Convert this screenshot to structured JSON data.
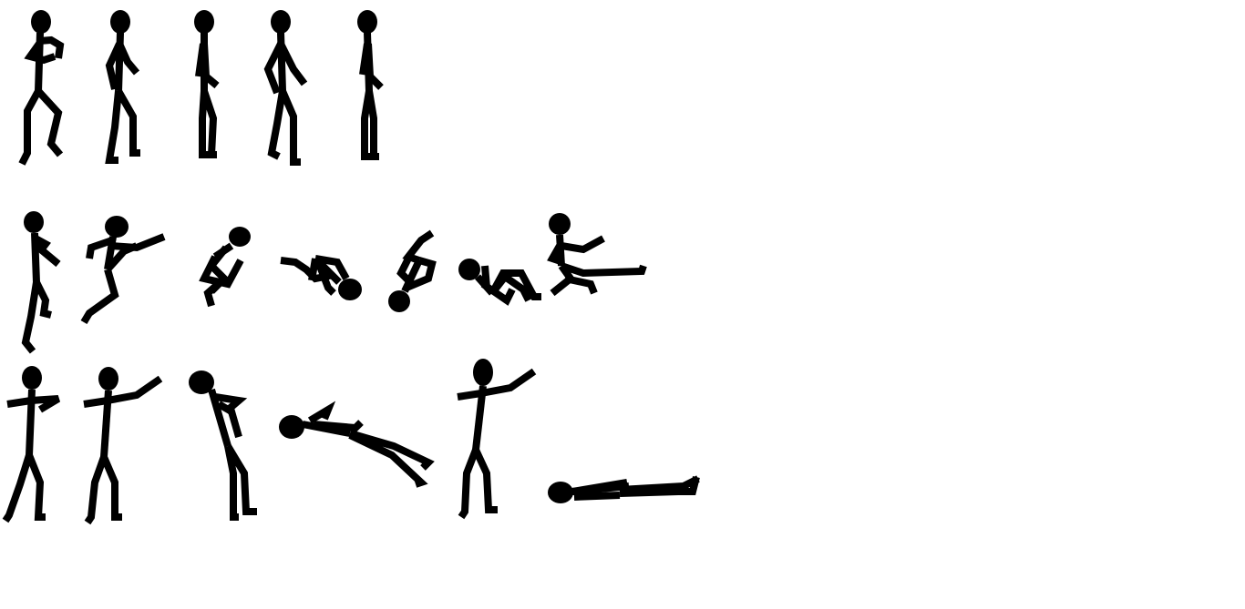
{
  "sheet": {
    "background_color": "#ffffff",
    "ink_color": "#000000",
    "rows": [
      {
        "name": "walk-cycle",
        "frames": [
          "walk-frame-1",
          "walk-frame-2",
          "walk-frame-3",
          "walk-frame-4",
          "walk-frame-5"
        ]
      },
      {
        "name": "flip-sequence",
        "frames": [
          "flip-frame-1",
          "flip-frame-2",
          "flip-frame-3",
          "flip-frame-4",
          "flip-frame-5",
          "flip-frame-6",
          "flip-frame-7"
        ]
      },
      {
        "name": "punch-knockdown-sequence",
        "frames": [
          "punch-frame-1",
          "punch-frame-2",
          "hit-frame-3",
          "fall-frame-4",
          "punch-frame-5",
          "lying-frame-6"
        ]
      }
    ]
  }
}
